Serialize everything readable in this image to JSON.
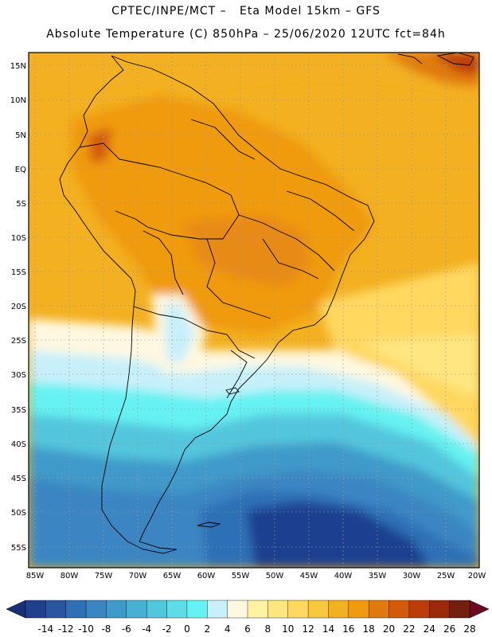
{
  "header": {
    "line1": "CPTEC/INPE/MCT –   Eta Model 15km – GFS",
    "line2": "Absolute Temperature (C) 850hPa – 25/06/2020 12UTC fct=84h"
  },
  "map": {
    "lat_labels": [
      "15N",
      "10N",
      "5N",
      "EQ",
      "5S",
      "10S",
      "15S",
      "20S",
      "25S",
      "30S",
      "35S",
      "40S",
      "45S",
      "50S",
      "55S"
    ],
    "lon_labels": [
      "85W",
      "80W",
      "75W",
      "70W",
      "65W",
      "60W",
      "55W",
      "50W",
      "45W",
      "40W",
      "35W",
      "30W",
      "25W",
      "20W"
    ]
  },
  "colorbar": {
    "labels": [
      "-14",
      "-12",
      "-10",
      "-8",
      "-6",
      "-4",
      "-2",
      "0",
      "2",
      "4",
      "6",
      "8",
      "10",
      "12",
      "14",
      "16",
      "18",
      "20",
      "22",
      "24",
      "26",
      "28"
    ],
    "colors": [
      "#1f3f8f",
      "#2a55a0",
      "#2f6fb5",
      "#3a86c2",
      "#3f9ac9",
      "#48b0d2",
      "#52c6dd",
      "#5edce8",
      "#66f2f2",
      "#c8f0fa",
      "#fff8e0",
      "#fff2a0",
      "#ffe680",
      "#ffd860",
      "#f8c840",
      "#f3b020",
      "#f09a10",
      "#e07a10",
      "#d35a0a",
      "#bb3e0a",
      "#9a2a0a",
      "#742010"
    ],
    "end_low": "#1a2f7a",
    "end_high": "#6a0a20"
  }
}
